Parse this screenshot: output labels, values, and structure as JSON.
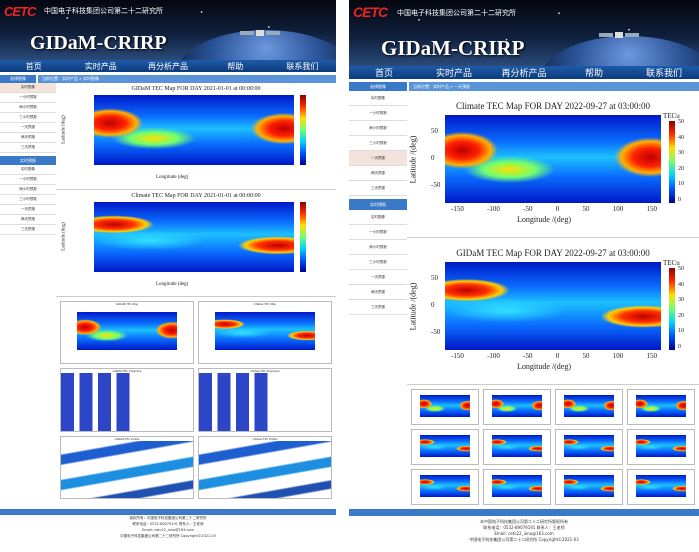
{
  "left_panel": {
    "logo": "CETC",
    "org_name": "中国电子科技集团公司第二十二研究所",
    "site_title": "GIDaM-CRIRP",
    "nav": [
      "首页",
      "实时产品",
      "再分析产品",
      "帮助",
      "联系我们"
    ],
    "crumb_tab": "选择图像",
    "breadcrumb": "当前位置：实时产品 » 实时图像",
    "sidebar_top": [
      "实时图像",
      "一小时预报",
      "两小时预报",
      "三小时预报",
      "一天预报",
      "两天预报",
      "三天预报"
    ],
    "sidebar_section": "实时预报",
    "sidebar_bottom": [
      "实时图像",
      "一小时预报",
      "两小时预报",
      "三小时预报",
      "一天预报",
      "两天预报",
      "三天预报"
    ],
    "map1_title": "GIDaM TEC Map FOR DAY 2021-01-01 at 00:00:00",
    "map2_title": "Climate TEC Map FOR DAY 2021-01-01 at 00:00:00",
    "map_xlabel": "Longitude (deg)",
    "map_ylabel": "Latitude (deg)",
    "thumb_row1": [
      "GIDaM TEC Map",
      "Climate TEC Map"
    ],
    "thumb_row2": [
      "GIDaM TEC Projection",
      "Climate TEC Projection"
    ],
    "thumb_row3": [
      "GIDaM TEC Profile",
      "Climate TEC Profile"
    ],
    "footer_lines": [
      "版权所有：中国电子科技集团公司第二十二研究所",
      "联系电话：0532-89079191  联系人：王老师",
      "Email: cetc22_iono@163.com",
      "中国电子科技集团公司第二十二研究所 Copyright©2021-03"
    ]
  },
  "right_panel": {
    "logo": "CETC",
    "org_name": "中国电子科技集团公司第二十二研究所",
    "site_title": "GIDaM-CRIRP",
    "nav": [
      "首页",
      "实时产品",
      "再分析产品",
      "帮助",
      "联系我们"
    ],
    "crumb_tab": "选择图像",
    "breadcrumb": "当前位置：实时产品 » 一天预报",
    "sidebar_top": [
      "实时图像",
      "一小时预报",
      "两小时预报",
      "三小时预报",
      "一天预报",
      "两天预报",
      "三天预报"
    ],
    "sidebar_active": 4,
    "sidebar_section": "实时预报",
    "sidebar_bottom": [
      "实时图像",
      "一小时预报",
      "两小时预报",
      "三小时预报",
      "一天预报",
      "两天预报",
      "三天预报"
    ],
    "map1_title": "Climate TEC Map FOR DAY 2022-09-27 at 03:00:00",
    "map2_title": "GIDaM TEC Map FOR DAY 2022-09-27 at 03:00:00",
    "map_xlabel": "Longitude /(deg)",
    "map_ylabel": "Latitude /(deg)",
    "colorbar_label": "TECu",
    "colorbar_ticks": [
      "50",
      "40",
      "30",
      "20",
      "10",
      "0"
    ],
    "x_ticks": [
      "-150",
      "-100",
      "-50",
      "0",
      "50",
      "100",
      "150"
    ],
    "y_ticks": [
      "50",
      "0",
      "-50"
    ],
    "footer_lines": [
      "本中国电子科技集团公司第二十二研究所版权所有",
      "联系电话：0532-89079191  联系人：王老师",
      "Email: cetc22_iono@163.com",
      "中国电子科技集团公司第二十二研究所 Copyright©2021-03"
    ]
  }
}
